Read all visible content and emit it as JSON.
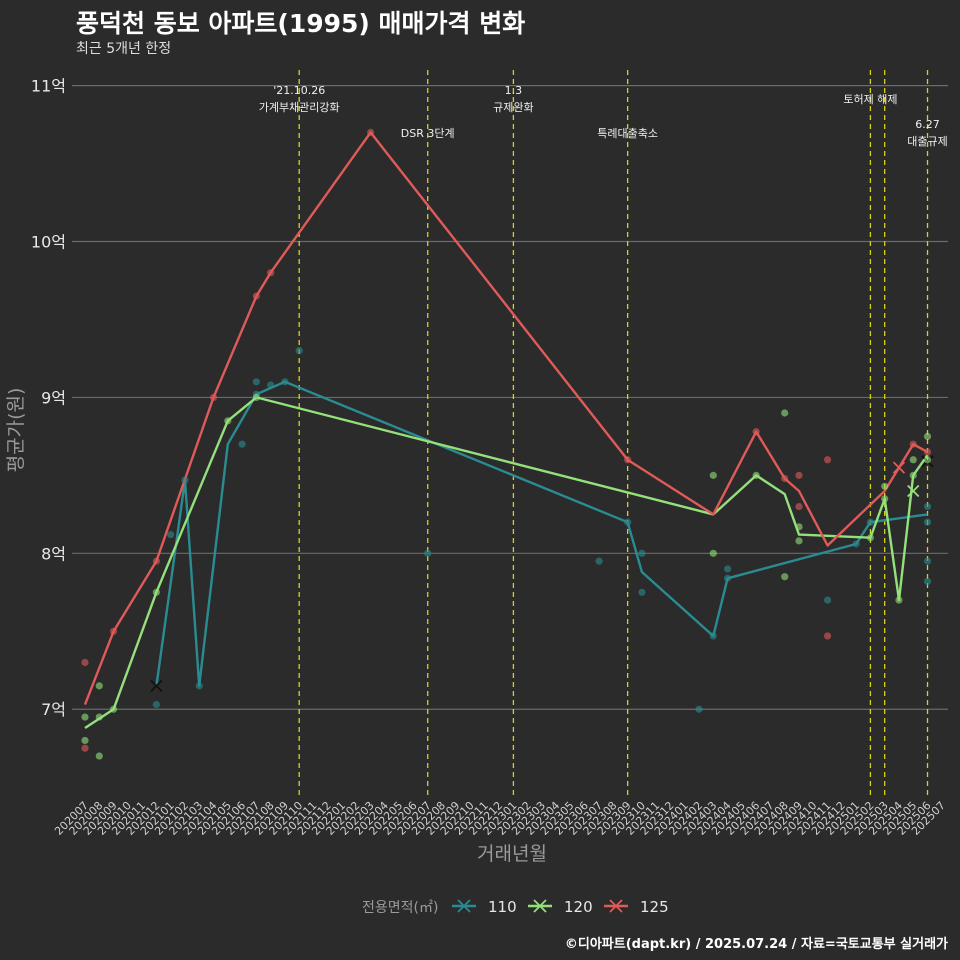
{
  "title": "풍덕천 동보 아파트(1995) 매매가격 변화",
  "subtitle": "최근 5개년 한정",
  "caption": "©디아파트(dapt.kr) / 2025.07.24 / 자료=국토교통부 실거래가",
  "chart_data": {
    "type": "line",
    "xlabel": "거래년월",
    "ylabel": "평균가(원)",
    "ylim": [
      6.45,
      11.1
    ],
    "y_ticks": [
      {
        "value": 7,
        "label": "7억"
      },
      {
        "value": 8,
        "label": "8억"
      },
      {
        "value": 9,
        "label": "9억"
      },
      {
        "value": 10,
        "label": "10억"
      },
      {
        "value": 11,
        "label": "11억"
      }
    ],
    "categories": [
      "202007",
      "202008",
      "202009",
      "202010",
      "202011",
      "202012",
      "202101",
      "202102",
      "202103",
      "202104",
      "202105",
      "202106",
      "202107",
      "202108",
      "202109",
      "202110",
      "202111",
      "202112",
      "202201",
      "202202",
      "202203",
      "202204",
      "202205",
      "202206",
      "202207",
      "202208",
      "202209",
      "202210",
      "202211",
      "202212",
      "202301",
      "202302",
      "202303",
      "202304",
      "202305",
      "202306",
      "202307",
      "202308",
      "202309",
      "202310",
      "202311",
      "202312",
      "202401",
      "202402",
      "202403",
      "202404",
      "202405",
      "202406",
      "202407",
      "202408",
      "202409",
      "202410",
      "202411",
      "202412",
      "202501",
      "202502",
      "202503",
      "202504",
      "202505",
      "202506",
      "202507"
    ],
    "legend_title": "전용면적(㎡)",
    "legend_position": "bottom",
    "grid": true,
    "series": [
      {
        "name": "110",
        "color": "#2a8c91",
        "points": [
          [
            "202012",
            7.15
          ],
          [
            "202102",
            8.47
          ],
          [
            "202103",
            7.15
          ],
          [
            "202105",
            8.7
          ],
          [
            "202107",
            9.02
          ],
          [
            "202109",
            9.1
          ],
          [
            "202309",
            8.2
          ],
          [
            "202310",
            7.88
          ],
          [
            "202403",
            7.47
          ],
          [
            "202404",
            7.84
          ],
          [
            "202501",
            8.06
          ],
          [
            "202502",
            8.2
          ],
          [
            "202506",
            8.25
          ]
        ],
        "scatter": [
          [
            "202012",
            7.03
          ],
          [
            "202101",
            8.12
          ],
          [
            "202102",
            8.47
          ],
          [
            "202103",
            7.15
          ],
          [
            "202106",
            8.7
          ],
          [
            "202107",
            9.1
          ],
          [
            "202107",
            9.02
          ],
          [
            "202108",
            9.08
          ],
          [
            "202109",
            9.1
          ],
          [
            "202110",
            9.3
          ],
          [
            "202207",
            8.0
          ],
          [
            "202307",
            7.95
          ],
          [
            "202309",
            8.2
          ],
          [
            "202310",
            8.0
          ],
          [
            "202310",
            7.75
          ],
          [
            "202402",
            7.0
          ],
          [
            "202403",
            7.47
          ],
          [
            "202404",
            7.9
          ],
          [
            "202404",
            7.84
          ],
          [
            "202411",
            7.7
          ],
          [
            "202501",
            8.06
          ],
          [
            "202502",
            8.2
          ],
          [
            "202506",
            8.3
          ],
          [
            "202506",
            8.2
          ],
          [
            "202506",
            7.95
          ],
          [
            "202506",
            7.82
          ]
        ],
        "cross": [
          [
            "202012",
            7.15
          ],
          [
            "202506",
            8.59
          ]
        ]
      },
      {
        "name": "120",
        "color": "#94e07a",
        "points": [
          [
            "202007",
            6.88
          ],
          [
            "202009",
            7.0
          ],
          [
            "202012",
            7.75
          ],
          [
            "202105",
            8.85
          ],
          [
            "202107",
            9.0
          ],
          [
            "202403",
            8.25
          ],
          [
            "202406",
            8.5
          ],
          [
            "202408",
            8.38
          ],
          [
            "202409",
            8.12
          ],
          [
            "202502",
            8.1
          ],
          [
            "202503",
            8.35
          ],
          [
            "202504",
            7.7
          ],
          [
            "202505",
            8.5
          ],
          [
            "202506",
            8.63
          ]
        ],
        "scatter": [
          [
            "202007",
            6.95
          ],
          [
            "202007",
            6.8
          ],
          [
            "202008",
            7.15
          ],
          [
            "202008",
            6.7
          ],
          [
            "202008",
            6.95
          ],
          [
            "202009",
            7.0
          ],
          [
            "202012",
            7.75
          ],
          [
            "202105",
            8.85
          ],
          [
            "202107",
            9.0
          ],
          [
            "202403",
            8.5
          ],
          [
            "202403",
            8.0
          ],
          [
            "202406",
            8.5
          ],
          [
            "202408",
            8.9
          ],
          [
            "202408",
            7.85
          ],
          [
            "202409",
            8.17
          ],
          [
            "202409",
            8.08
          ],
          [
            "202502",
            8.1
          ],
          [
            "202503",
            8.35
          ],
          [
            "202503",
            8.43
          ],
          [
            "202504",
            7.7
          ],
          [
            "202505",
            8.6
          ],
          [
            "202505",
            8.5
          ],
          [
            "202506",
            8.75
          ],
          [
            "202506",
            8.6
          ]
        ],
        "cross": [
          [
            "202505",
            8.4
          ]
        ]
      },
      {
        "name": "125",
        "color": "#e05a5a",
        "points": [
          [
            "202007",
            7.03
          ],
          [
            "202009",
            7.5
          ],
          [
            "202012",
            7.95
          ],
          [
            "202104",
            9.0
          ],
          [
            "202107",
            9.65
          ],
          [
            "202108",
            9.8
          ],
          [
            "202203",
            10.7
          ],
          [
            "202309",
            8.6
          ],
          [
            "202403",
            8.25
          ],
          [
            "202406",
            8.78
          ],
          [
            "202408",
            8.48
          ],
          [
            "202409",
            8.4
          ],
          [
            "202411",
            8.05
          ],
          [
            "202503",
            8.4
          ],
          [
            "202504",
            8.55
          ],
          [
            "202505",
            8.7
          ],
          [
            "202506",
            8.65
          ]
        ],
        "scatter": [
          [
            "202007",
            7.3
          ],
          [
            "202007",
            6.75
          ],
          [
            "202009",
            7.5
          ],
          [
            "202012",
            7.95
          ],
          [
            "202104",
            9.0
          ],
          [
            "202107",
            9.65
          ],
          [
            "202108",
            9.8
          ],
          [
            "202203",
            10.7
          ],
          [
            "202309",
            8.6
          ],
          [
            "202406",
            8.78
          ],
          [
            "202408",
            8.48
          ],
          [
            "202409",
            8.5
          ],
          [
            "202409",
            8.3
          ],
          [
            "202411",
            8.6
          ],
          [
            "202411",
            7.47
          ],
          [
            "202505",
            8.7
          ],
          [
            "202506",
            8.65
          ]
        ],
        "cross": [
          [
            "202504",
            8.55
          ]
        ]
      }
    ],
    "events": [
      {
        "month": "202110",
        "line1": "'21.10.26",
        "line2": "가계부채관리강화",
        "level": 0
      },
      {
        "month": "202207",
        "line1": "DSR 3단계",
        "line2": "",
        "level": 2
      },
      {
        "month": "202301",
        "line1": "1.3",
        "line2": "규제완화",
        "level": 0
      },
      {
        "month": "202309",
        "line1": "특례대출축소",
        "line2": "",
        "level": 2
      },
      {
        "month": "202502",
        "line1": "토허제 해제",
        "line2": "",
        "level": 1
      },
      {
        "month": "202503",
        "line1": "",
        "line2": "",
        "level": 1
      },
      {
        "month": "202506",
        "line1": "6.27",
        "line2": "대출규제",
        "level": 3
      }
    ]
  }
}
